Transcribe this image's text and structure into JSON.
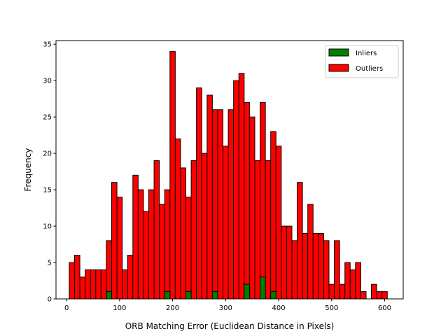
{
  "chart_data": {
    "type": "bar",
    "subtype": "histogram",
    "xlabel": "ORB Matching Error (Euclidean Distance in Pixels)",
    "ylabel": "Frequency",
    "xlim": [
      -20,
      635
    ],
    "ylim": [
      0,
      35.5
    ],
    "xticks": [
      0,
      100,
      200,
      300,
      400,
      500,
      600
    ],
    "yticks": [
      0,
      5,
      10,
      15,
      20,
      25,
      30,
      35
    ],
    "bin_width": 10,
    "legend_position": "top-right",
    "legend": [
      "Inliers",
      "Outliers"
    ],
    "colors": {
      "Inliers": "#008000",
      "Outliers": "#ff0000",
      "edge": "#000000"
    },
    "series": [
      {
        "name": "Outliers",
        "bin_starts": [
          5,
          15,
          25,
          35,
          45,
          55,
          65,
          75,
          85,
          95,
          105,
          115,
          125,
          135,
          145,
          155,
          165,
          175,
          185,
          195,
          205,
          215,
          225,
          235,
          245,
          255,
          265,
          275,
          285,
          295,
          305,
          315,
          325,
          335,
          345,
          355,
          365,
          375,
          385,
          395,
          405,
          415,
          425,
          435,
          445,
          455,
          465,
          475,
          485,
          495,
          505,
          515,
          525,
          535,
          545,
          555,
          565,
          575,
          585,
          595
        ],
        "values": [
          5,
          6,
          3,
          4,
          4,
          4,
          4,
          8,
          16,
          14,
          4,
          6,
          17,
          15,
          12,
          15,
          19,
          13,
          15,
          34,
          22,
          18,
          14,
          19,
          29,
          20,
          28,
          26,
          26,
          21,
          26,
          30,
          31,
          27,
          25,
          19,
          27,
          19,
          23,
          21,
          10,
          10,
          8,
          16,
          9,
          13,
          9,
          9,
          8,
          2,
          8,
          2,
          5,
          4,
          5,
          1,
          0,
          2,
          1,
          1
        ]
      },
      {
        "name": "Inliers",
        "bin_starts": [
          75,
          185,
          225,
          275,
          335,
          365,
          385
        ],
        "values": [
          1,
          1,
          1,
          1,
          2,
          3,
          1
        ]
      }
    ]
  }
}
